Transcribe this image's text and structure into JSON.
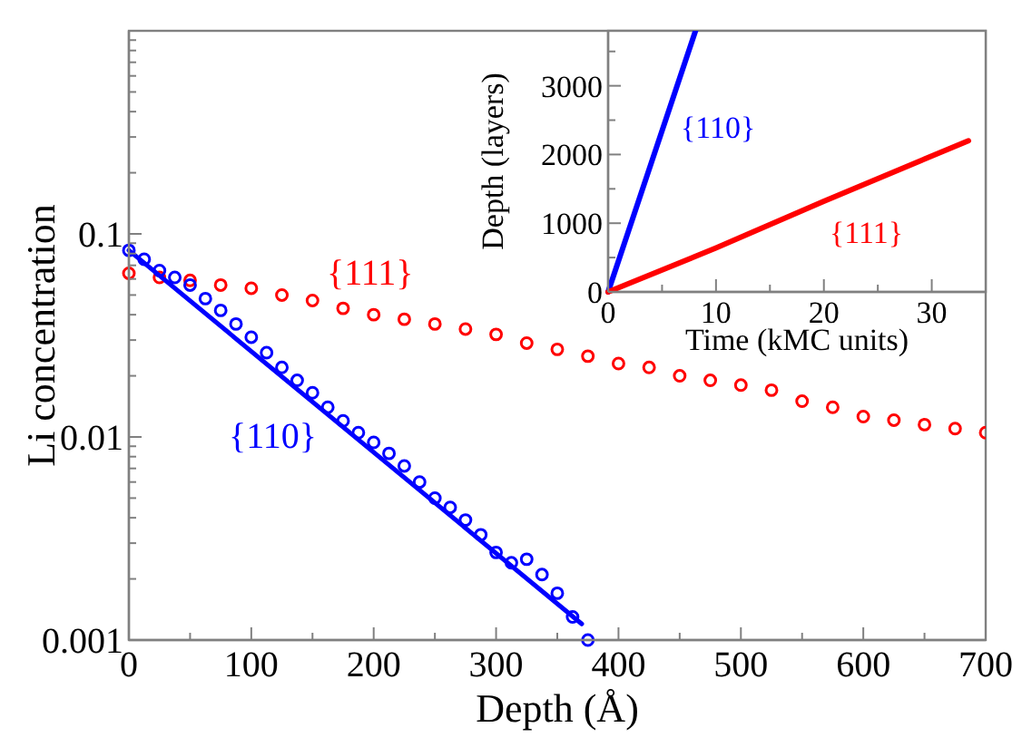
{
  "chart_data": [
    {
      "type": "scatter",
      "xlabel": "Depth (Å)",
      "ylabel": "Li concentration",
      "log": "y",
      "xlim": [
        0,
        700
      ],
      "ylim": [
        0.001,
        1
      ],
      "marker": "circle",
      "legend": false,
      "grid": false,
      "xticks": [
        0,
        {
          "value": 50,
          "label": null
        },
        100,
        {
          "value": 150,
          "label": null
        },
        200,
        {
          "value": 250,
          "label": null
        },
        300,
        {
          "value": 350,
          "label": null
        },
        400,
        {
          "value": 450,
          "label": null
        },
        500,
        {
          "value": 550,
          "label": null
        },
        600,
        {
          "value": 650,
          "label": null
        },
        700
      ],
      "yticks": [
        0.001,
        {
          "value": 0.002,
          "label": null
        },
        {
          "value": 0.003,
          "label": null
        },
        {
          "value": 0.004,
          "label": null
        },
        {
          "value": 0.005,
          "label": null
        },
        {
          "value": 0.006,
          "label": null
        },
        {
          "value": 0.007,
          "label": null
        },
        {
          "value": 0.008,
          "label": null
        },
        {
          "value": 0.009,
          "label": null
        },
        0.01,
        {
          "value": 0.02,
          "label": null
        },
        {
          "value": 0.03,
          "label": null
        },
        {
          "value": 0.04,
          "label": null
        },
        {
          "value": 0.05,
          "label": null
        },
        {
          "value": 0.06,
          "label": null
        },
        {
          "value": 0.07,
          "label": null
        },
        {
          "value": 0.08,
          "label": null
        },
        {
          "value": 0.09,
          "label": null
        },
        0.1,
        {
          "value": 0.2,
          "label": null
        },
        {
          "value": 0.3,
          "label": null
        },
        {
          "value": 0.4,
          "label": null
        },
        {
          "value": 0.5,
          "label": null
        },
        {
          "value": 0.6,
          "label": null
        },
        {
          "value": 0.7,
          "label": null
        },
        {
          "value": 0.8,
          "label": null
        },
        {
          "value": 0.9,
          "label": null
        }
      ],
      "series": [
        {
          "name": "{111}",
          "color": "#ff0000",
          "x": [
            0,
            25,
            50,
            75,
            100,
            125,
            150,
            175,
            200,
            225,
            250,
            275,
            300,
            325,
            350,
            375,
            400,
            425,
            450,
            475,
            500,
            525,
            550,
            575,
            600,
            625,
            650,
            675,
            700
          ],
          "values": [
            0.064,
            0.061,
            0.059,
            0.056,
            0.054,
            0.05,
            0.047,
            0.043,
            0.04,
            0.038,
            0.036,
            0.034,
            0.032,
            0.029,
            0.027,
            0.025,
            0.023,
            0.022,
            0.02,
            0.019,
            0.018,
            0.017,
            0.015,
            0.014,
            0.0126,
            0.0121,
            0.0115,
            0.011,
            0.0105
          ]
        },
        {
          "name": "{110}",
          "color": "#0000ff",
          "x": [
            0,
            12.5,
            25,
            37.5,
            50,
            62.5,
            75,
            87.5,
            100,
            112.5,
            125,
            137.5,
            150,
            162.5,
            175,
            187.5,
            200,
            212.5,
            225,
            237.5,
            250,
            262.5,
            275,
            287.5,
            300,
            312.5,
            325,
            337.5,
            350,
            362.5,
            375
          ],
          "values": [
            0.083,
            0.075,
            0.066,
            0.061,
            0.056,
            0.048,
            0.042,
            0.036,
            0.031,
            0.026,
            0.022,
            0.019,
            0.0165,
            0.014,
            0.012,
            0.0105,
            0.0094,
            0.0083,
            0.0072,
            0.006,
            0.005,
            0.0045,
            0.0039,
            0.0033,
            0.0027,
            0.0024,
            0.0025,
            0.0021,
            0.0017,
            0.0013,
            0.001
          ]
        },
        {
          "color": "#0000ff",
          "type": "line",
          "marker": "none",
          "x": [
            0,
            370
          ],
          "values": [
            0.083,
            0.0012
          ]
        }
      ]
    },
    {
      "type": "line",
      "xlabel": "Time (kMC units)",
      "ylabel": "Depth (layers)",
      "xlim": [
        0,
        35
      ],
      "ylim": [
        0,
        3800
      ],
      "marker": "none",
      "legend": false,
      "grid": false,
      "xticks": [
        0,
        {
          "value": 5,
          "label": null
        },
        10,
        {
          "value": 15,
          "label": null
        },
        20,
        {
          "value": 25,
          "label": null
        },
        30
      ],
      "yticks": [
        0,
        {
          "value": 500,
          "label": null
        },
        1000,
        {
          "value": 1500,
          "label": null
        },
        2000,
        {
          "value": 2500,
          "label": null
        },
        3000,
        {
          "value": 3500,
          "label": null
        }
      ],
      "series": [
        {
          "name": "{110}",
          "color": "#0000ff",
          "x": [
            0,
            8.1
          ],
          "values": [
            0,
            3800
          ]
        },
        {
          "name": "{111}",
          "color": "#ff0000",
          "x": [
            0,
            10,
            20,
            33.4
          ],
          "values": [
            0,
            640,
            1320,
            2200
          ]
        }
      ]
    }
  ]
}
